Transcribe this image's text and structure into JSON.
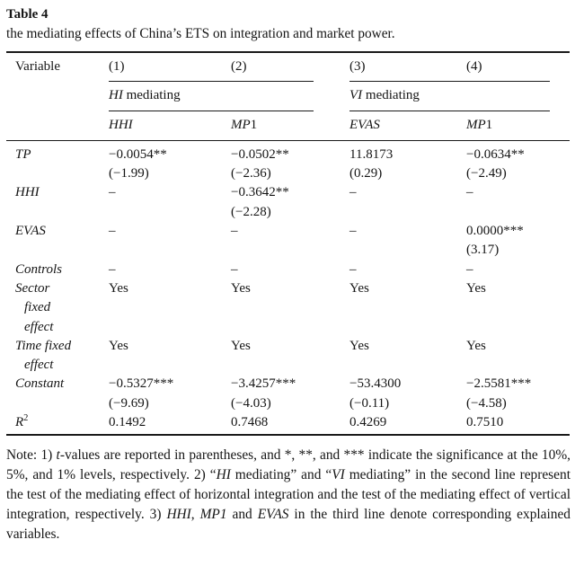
{
  "page": {
    "title": "Table 4",
    "subtitle": "the mediating effects of China’s ETS on integration and market power."
  },
  "table": {
    "header": [
      "Variable",
      "(1)",
      "(2)",
      "(3)",
      "(4)"
    ],
    "groups": [
      {
        "italic": "HI",
        "rest": " mediating"
      },
      {
        "italic": "VI",
        "rest": " mediating"
      }
    ],
    "subheaders": [
      {
        "italic": "HHI",
        "rest": ""
      },
      {
        "italic": "MP",
        "rest": "1"
      },
      {
        "italic": "EVAS",
        "rest": ""
      },
      {
        "italic": "MP",
        "rest": "1"
      }
    ],
    "rows": [
      {
        "label_lines": [
          "TP"
        ],
        "cells": [
          [
            "−0.0054**",
            "(−1.99)"
          ],
          [
            "−0.0502**",
            "(−2.36)"
          ],
          [
            "11.8173",
            "(0.29)"
          ],
          [
            "−0.0634**",
            "(−2.49)"
          ]
        ]
      },
      {
        "label_lines": [
          "HHI"
        ],
        "cells": [
          [
            "–"
          ],
          [
            "−0.3642**",
            "(−2.28)"
          ],
          [
            "–"
          ],
          [
            "–"
          ]
        ]
      },
      {
        "label_lines": [
          "EVAS"
        ],
        "cells": [
          [
            "–"
          ],
          [
            "–"
          ],
          [
            "–"
          ],
          [
            "0.0000***",
            "(3.17)"
          ]
        ]
      },
      {
        "label_lines": [
          "Controls"
        ],
        "cells": [
          [
            "–"
          ],
          [
            "–"
          ],
          [
            "–"
          ],
          [
            "–"
          ]
        ]
      },
      {
        "label_lines": [
          "Sector",
          "fixed",
          "effect"
        ],
        "cells": [
          [
            "Yes"
          ],
          [
            "Yes"
          ],
          [
            "Yes"
          ],
          [
            "Yes"
          ]
        ]
      },
      {
        "label_lines": [
          "Time fixed",
          "effect"
        ],
        "cells": [
          [
            "Yes"
          ],
          [
            "Yes"
          ],
          [
            "Yes"
          ],
          [
            "Yes"
          ]
        ]
      },
      {
        "label_lines": [
          "Constant"
        ],
        "cells": [
          [
            "−0.5327***",
            "(−9.69)"
          ],
          [
            "−3.4257***",
            "(−4.03)"
          ],
          [
            "−53.4300",
            "(−0.11)"
          ],
          [
            "−2.5581***",
            "(−4.58)"
          ]
        ]
      },
      {
        "label_lines": [
          "R"
        ],
        "label_sup": "2",
        "cells": [
          [
            "0.1492"
          ],
          [
            "0.7468"
          ],
          [
            "0.4269"
          ],
          [
            "0.7510"
          ]
        ]
      }
    ]
  },
  "note": {
    "segments": [
      {
        "t": "Note: 1) "
      },
      {
        "t": "t",
        "i": true
      },
      {
        "t": "-values are reported in parentheses, and *, **, and *** indicate the significance at the 10%, 5%, and 1% levels, respectively. 2) “"
      },
      {
        "t": "HI",
        "i": true
      },
      {
        "t": " mediating” and “"
      },
      {
        "t": "VI",
        "i": true
      },
      {
        "t": " mediating” in the second line represent the test of the mediating effect of horizontal integration and the test of the mediating effect of vertical integration, respectively. 3) "
      },
      {
        "t": "HHI",
        "i": true
      },
      {
        "t": ", "
      },
      {
        "t": "MP1",
        "i": true
      },
      {
        "t": " and "
      },
      {
        "t": "EVAS",
        "i": true
      },
      {
        "t": " in the third line denote corresponding explained variables."
      }
    ]
  }
}
